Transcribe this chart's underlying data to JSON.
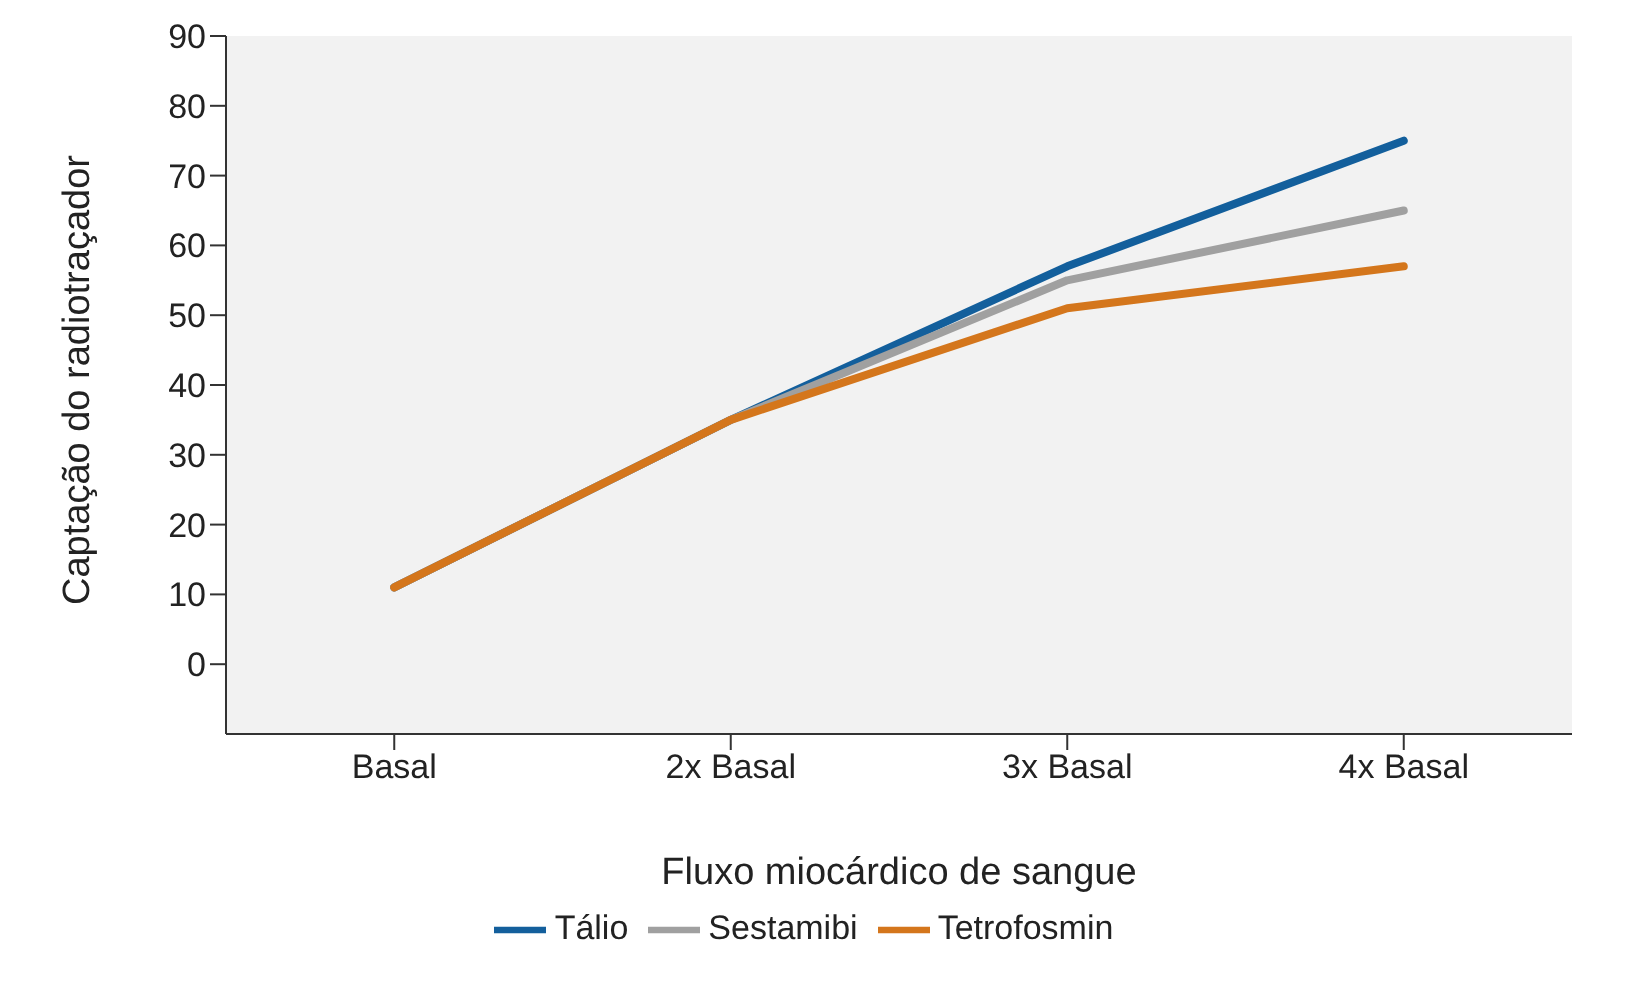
{
  "chart_data": {
    "type": "line",
    "xlabel": "Fluxo miocárdico de sangue",
    "ylabel": "Captação do radiotraçador",
    "categories": [
      "Basal",
      "2x Basal",
      "3x Basal",
      "4x Basal"
    ],
    "series": [
      {
        "name": "Tálio",
        "color": "#135f9c",
        "values": [
          11,
          35,
          57,
          75
        ]
      },
      {
        "name": "Sestamibi",
        "color": "#a0a0a0",
        "values": [
          11,
          35,
          55,
          65
        ]
      },
      {
        "name": "Tetrofosmin",
        "color": "#d4761c",
        "values": [
          11,
          35,
          51,
          57
        ]
      }
    ],
    "ylim": [
      -10,
      90
    ],
    "yticks": [
      0,
      10,
      20,
      30,
      40,
      50,
      60,
      70,
      80,
      90
    ],
    "grid": false,
    "legend": "bottom",
    "marker": "none",
    "line_style": "solid"
  }
}
